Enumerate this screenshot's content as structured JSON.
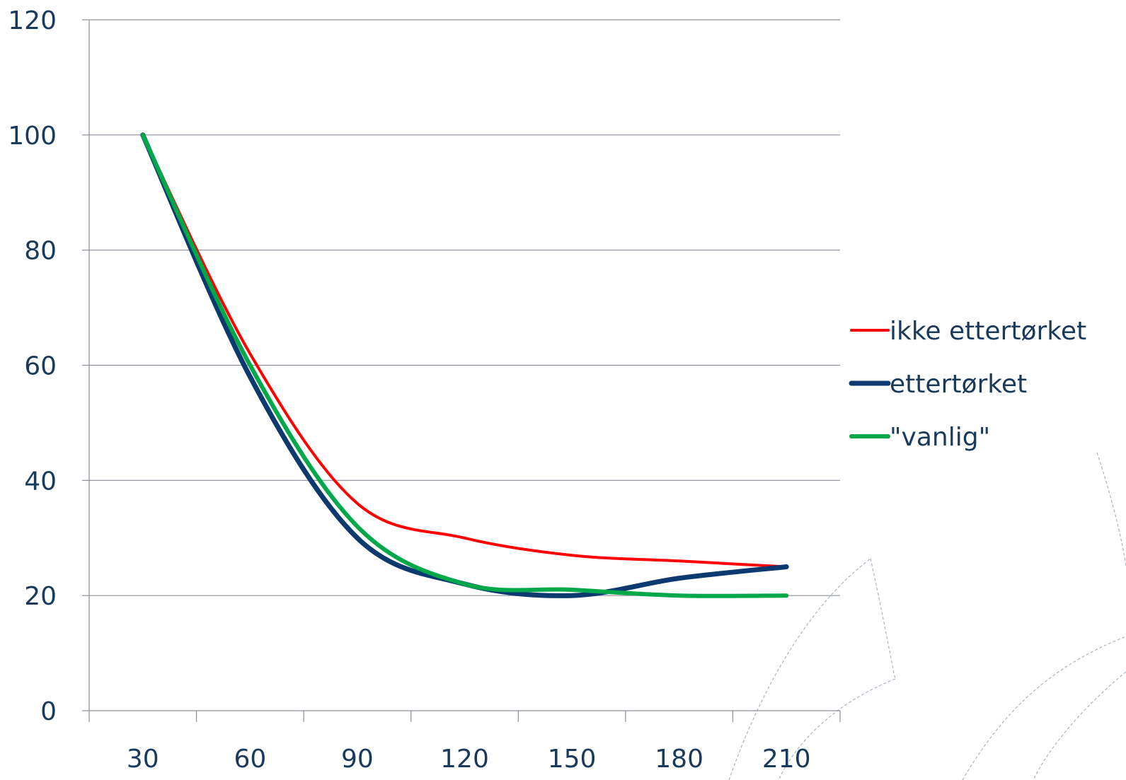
{
  "chart_data": {
    "type": "line",
    "title": "",
    "xlabel": "",
    "ylabel": "",
    "x": [
      30,
      60,
      90,
      120,
      150,
      180,
      210
    ],
    "xlim": [
      15,
      225
    ],
    "ylim": [
      0,
      120
    ],
    "yticks": [
      0,
      20,
      40,
      60,
      80,
      100,
      120
    ],
    "grid": true,
    "smooth": true,
    "legend_position": "right",
    "series": [
      {
        "name": "ikke ettertørket",
        "color": "#ff0000",
        "values": [
          100,
          62,
          36,
          30,
          27,
          26,
          25
        ]
      },
      {
        "name": "ettertørket",
        "color": "#0d3a6e",
        "values": [
          100,
          58,
          30,
          22,
          20,
          23,
          25
        ]
      },
      {
        "name": "\"vanlig\"",
        "color": "#00a84a",
        "values": [
          100,
          60,
          32,
          22,
          21,
          20,
          20
        ]
      }
    ]
  }
}
